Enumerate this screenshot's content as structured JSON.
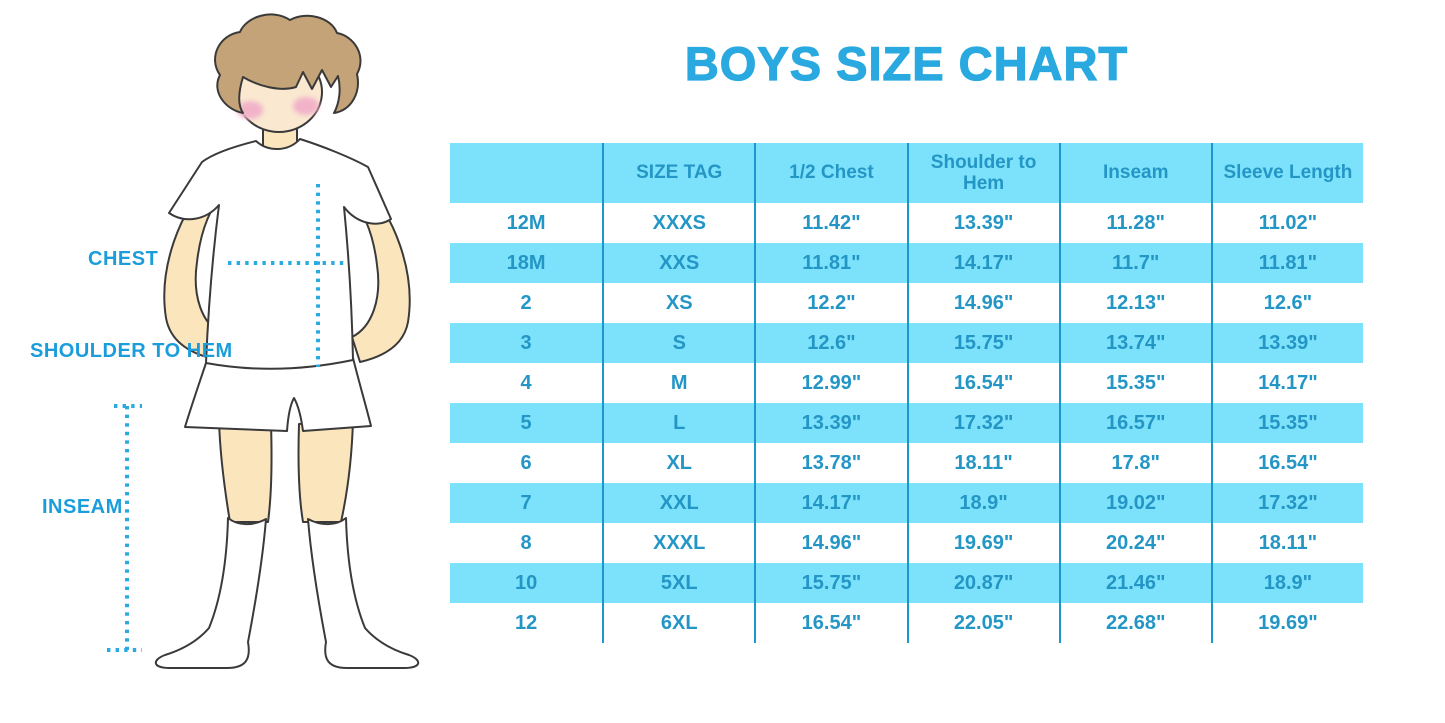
{
  "title": "BOYS SIZE CHART",
  "figure": {
    "illustration": "boy-in-white-tshirt-shorts-and-socks",
    "labels": {
      "chest": "CHEST",
      "shoulder_to_hem": "SHOULDER TO HEM",
      "inseam": "INSEAM"
    }
  },
  "colors": {
    "title_blue": "#29A9E0",
    "label_blue": "#1C9DDB",
    "dotted_line_blue": "#29ABE2",
    "table_stripe_blue": "#7CE2FB",
    "table_text_blue": "#2496C6",
    "table_divider_blue": "#1B97CD",
    "skin": "#FBE5BC",
    "face_skin": "#FAE8D0",
    "hair_brown": "#C5A379",
    "blush_pink": "#F2B3C9",
    "outline": "#3A3A3A"
  },
  "chart_data": {
    "type": "table",
    "title": "BOYS SIZE CHART",
    "columns": [
      "",
      "SIZE TAG",
      "1/2 Chest",
      "Shoulder to Hem",
      "Inseam",
      "Sleeve Length"
    ],
    "rows": [
      [
        "12M",
        "XXXS",
        "11.42\"",
        "13.39\"",
        "11.28\"",
        "11.02\""
      ],
      [
        "18M",
        "XXS",
        "11.81\"",
        "14.17\"",
        "11.7\"",
        "11.81\""
      ],
      [
        "2",
        "XS",
        "12.2\"",
        "14.96\"",
        "12.13\"",
        "12.6\""
      ],
      [
        "3",
        "S",
        "12.6\"",
        "15.75\"",
        "13.74\"",
        "13.39\""
      ],
      [
        "4",
        "M",
        "12.99\"",
        "16.54\"",
        "15.35\"",
        "14.17\""
      ],
      [
        "5",
        "L",
        "13.39\"",
        "17.32\"",
        "16.57\"",
        "15.35\""
      ],
      [
        "6",
        "XL",
        "13.78\"",
        "18.11\"",
        "17.8\"",
        "16.54\""
      ],
      [
        "7",
        "XXL",
        "14.17\"",
        "18.9\"",
        "19.02\"",
        "17.32\""
      ],
      [
        "8",
        "XXXL",
        "14.96\"",
        "19.69\"",
        "20.24\"",
        "18.11\""
      ],
      [
        "10",
        "5XL",
        "15.75\"",
        "20.87\"",
        "21.46\"",
        "18.9\""
      ],
      [
        "12",
        "6XL",
        "16.54\"",
        "22.05\"",
        "22.68\"",
        "19.69\""
      ]
    ],
    "stripe_pattern": "header and every second data row filled light blue",
    "units": "inches"
  }
}
